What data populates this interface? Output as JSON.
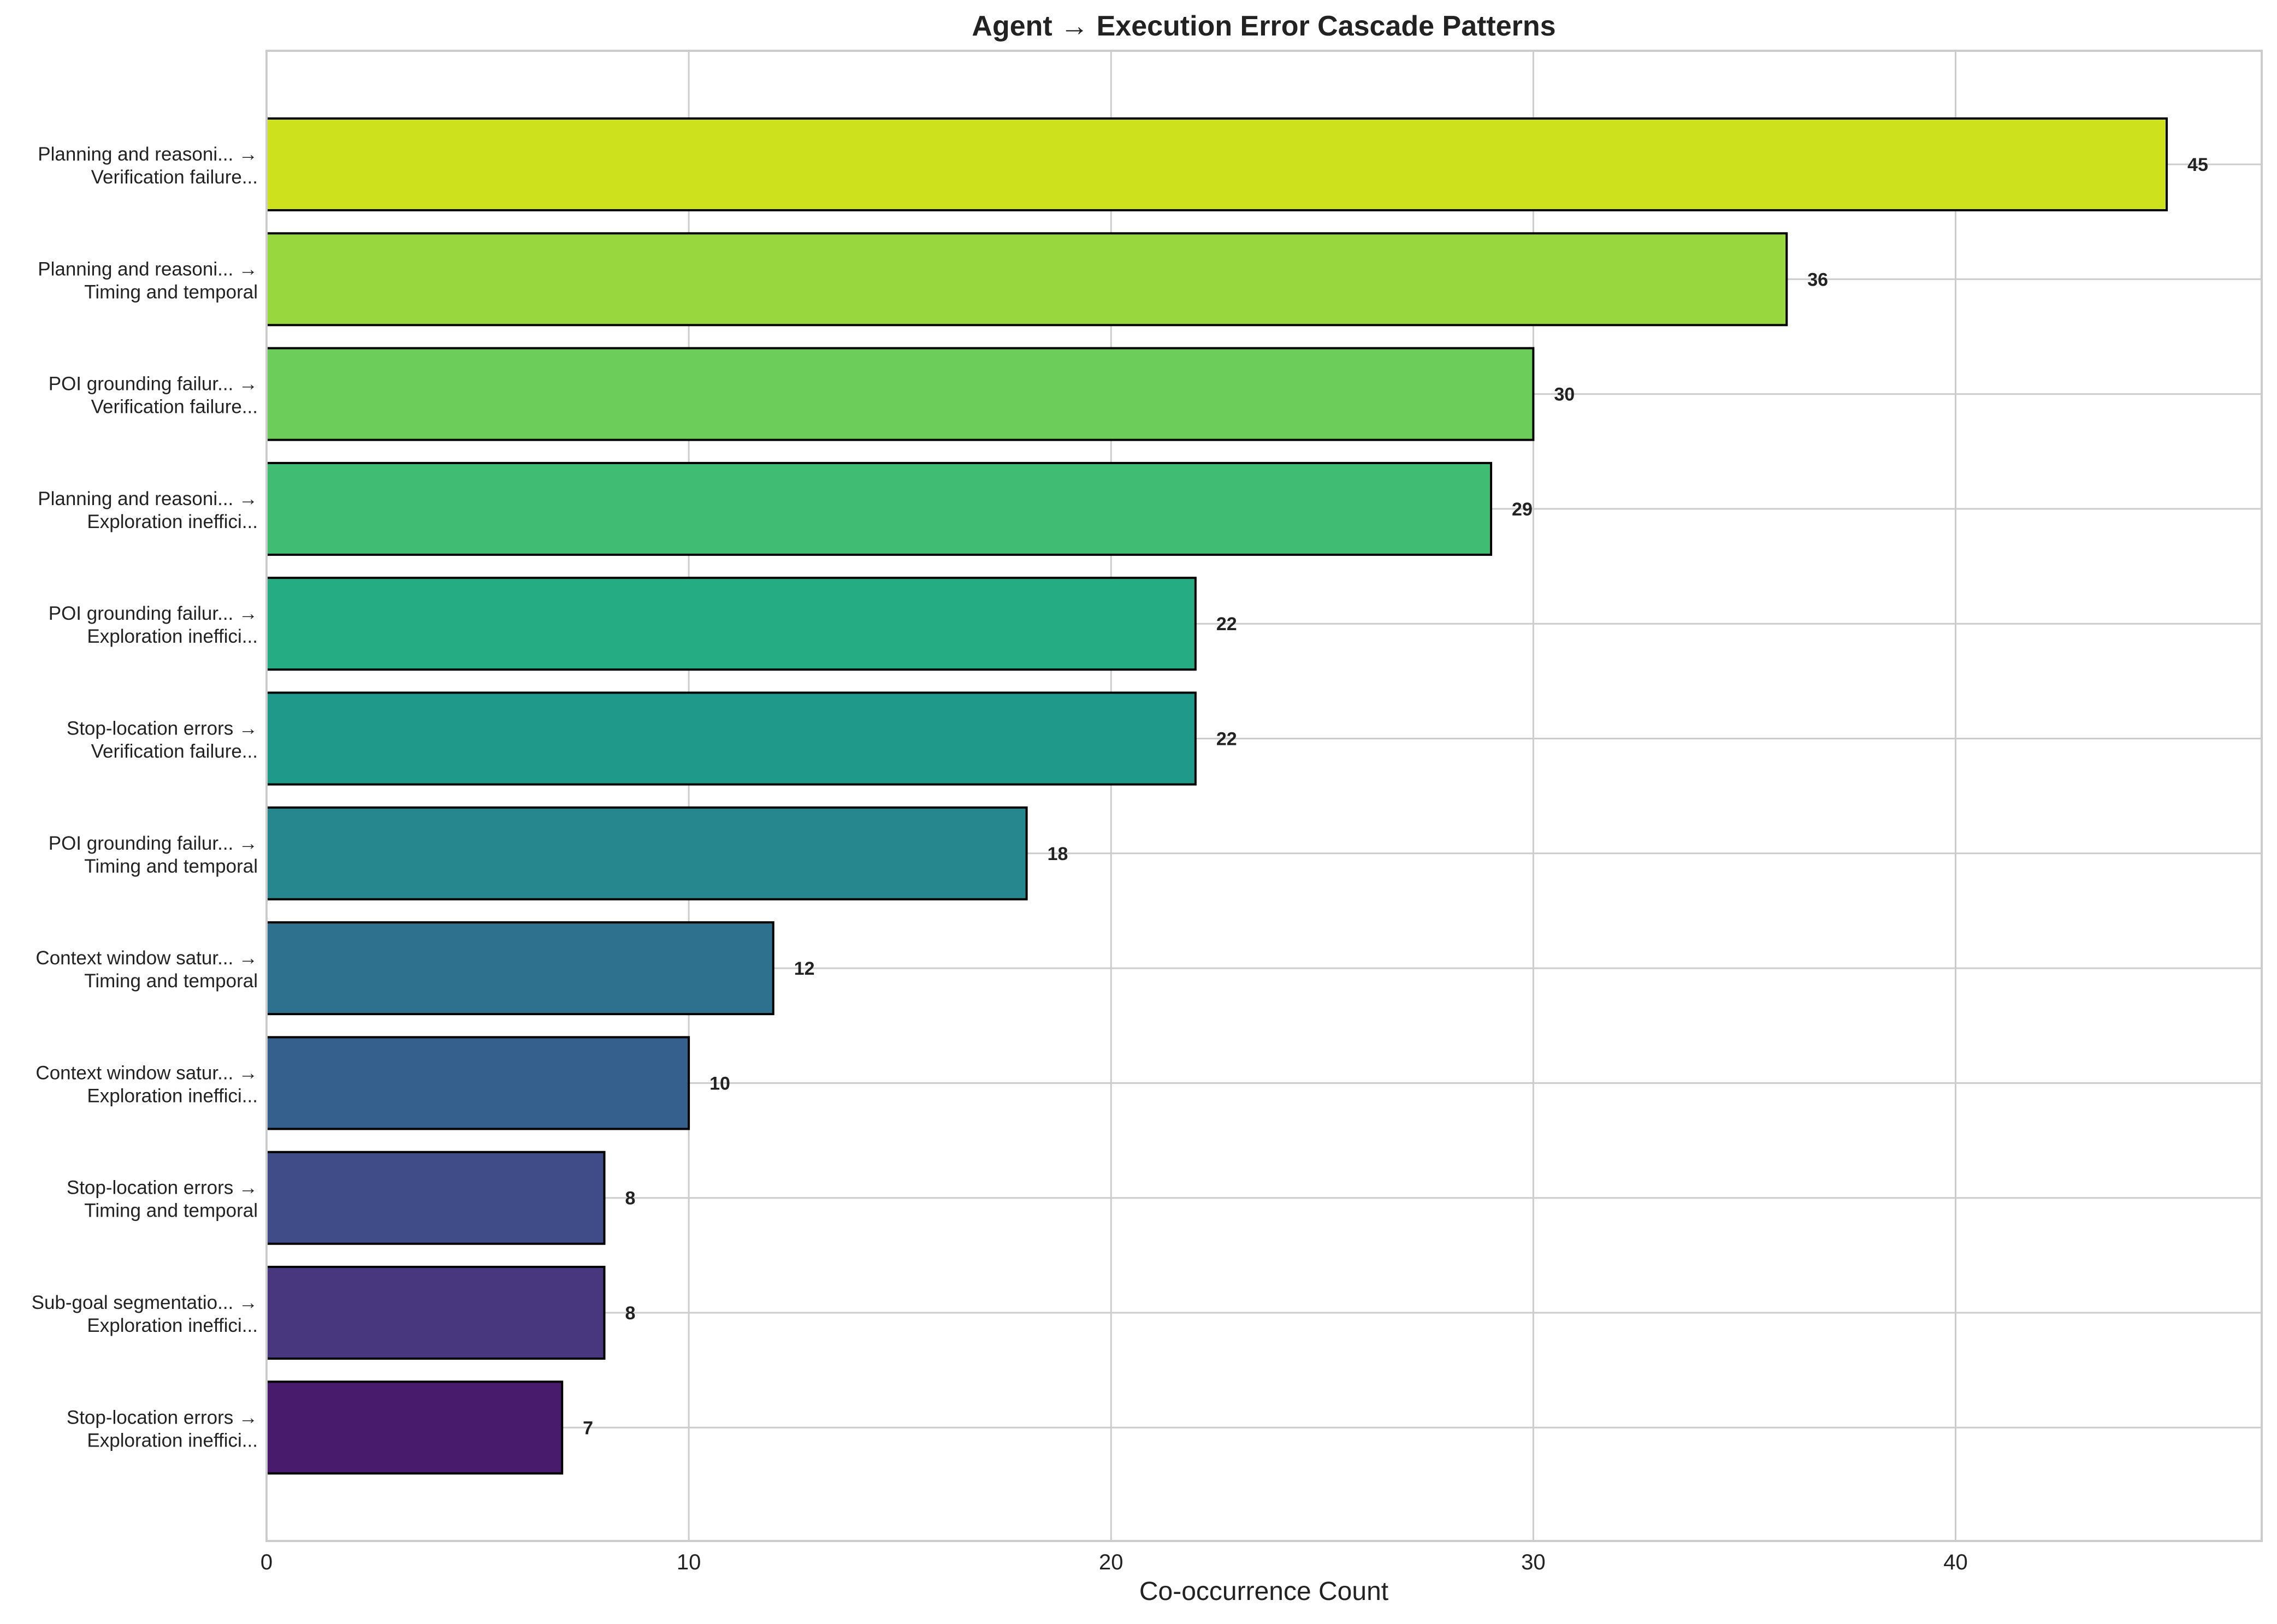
{
  "chart_data": {
    "type": "bar",
    "orientation": "horizontal",
    "title": "Agent → Execution Error Cascade Patterns",
    "xlabel": "Co-occurrence Count",
    "ylabel": "",
    "xlim": [
      0,
      47.25
    ],
    "xticks": [
      0,
      10,
      20,
      30,
      40
    ],
    "grid": true,
    "categories": [
      [
        "Planning and reasoni... →",
        "Verification failure..."
      ],
      [
        "Planning and reasoni... →",
        "Timing and temporal"
      ],
      [
        "POI grounding failur... →",
        "Verification failure..."
      ],
      [
        "Planning and reasoni... →",
        "Exploration ineffici..."
      ],
      [
        "POI grounding failur... →",
        "Exploration ineffici..."
      ],
      [
        "Stop-location errors →",
        "Verification failure..."
      ],
      [
        "POI grounding failur... →",
        "Timing and temporal"
      ],
      [
        "Context window satur... →",
        "Timing and temporal"
      ],
      [
        "Context window satur... →",
        "Exploration ineffici..."
      ],
      [
        "Stop-location errors →",
        "Timing and temporal"
      ],
      [
        "Sub-goal segmentatio... →",
        "Exploration ineffici..."
      ],
      [
        "Stop-location errors →",
        "Exploration ineffici..."
      ]
    ],
    "values": [
      45,
      36,
      30,
      29,
      22,
      22,
      18,
      12,
      10,
      8,
      8,
      7
    ],
    "colors": [
      "#cde11d",
      "#98d83e",
      "#6ccd5a",
      "#40bd72",
      "#25ac82",
      "#1f9a8a",
      "#26888e",
      "#2d718e",
      "#355f8d",
      "#404c88",
      "#48377e",
      "#481b6d"
    ],
    "bar_edge_color": "#000000",
    "grid_color": "#cccccc",
    "text_color": "#222222"
  }
}
